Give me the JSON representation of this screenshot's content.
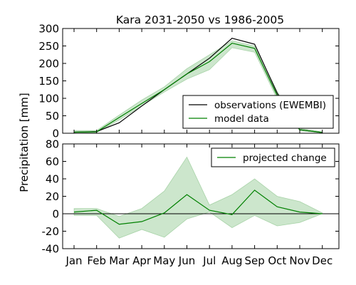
{
  "chart_data": [
    {
      "type": "line",
      "title": "Kara 2031-2050 vs 1986-2005",
      "ylim": [
        0,
        300
      ],
      "yticks": [
        0,
        50,
        100,
        150,
        200,
        250,
        300
      ],
      "grid": false,
      "legend": "lower-right",
      "series": [
        {
          "name": "observations (EWEMBI)",
          "color": "#000000",
          "values": [
            3,
            5,
            30,
            78,
            125,
            170,
            215,
            272,
            255,
            115,
            10,
            2
          ]
        },
        {
          "name": "model data",
          "color": "#008000",
          "values": [
            3,
            4,
            45,
            85,
            125,
            170,
            205,
            258,
            243,
            108,
            10,
            2
          ],
          "band_low": [
            0,
            2,
            38,
            78,
            118,
            155,
            182,
            245,
            232,
            98,
            7,
            1
          ],
          "band_high": [
            8,
            8,
            52,
            95,
            133,
            185,
            225,
            265,
            250,
            120,
            14,
            4
          ]
        }
      ]
    },
    {
      "type": "line",
      "ylim": [
        -40,
        80
      ],
      "yticks": [
        -40,
        -20,
        0,
        20,
        40,
        60,
        80
      ],
      "grid": false,
      "legend": "top-right",
      "zero_line": true,
      "series": [
        {
          "name": "projected change",
          "color": "#008000",
          "values": [
            2,
            4,
            -12,
            -9,
            1,
            22,
            4,
            -1,
            27,
            8,
            2,
            0
          ],
          "band_low": [
            -2,
            -2,
            -28,
            -18,
            -27,
            -6,
            2,
            -16,
            -2,
            -14,
            -10,
            0
          ],
          "band_high": [
            6,
            6,
            -3,
            6,
            26,
            65,
            10,
            22,
            40,
            20,
            14,
            1
          ]
        }
      ]
    }
  ],
  "ylabel": "Precipitation [mm]",
  "categories": [
    "Jan",
    "Feb",
    "Mar",
    "Apr",
    "May",
    "Jun",
    "Jul",
    "Aug",
    "Sep",
    "Oct",
    "Nov",
    "Dec"
  ],
  "band_color": "#008000"
}
